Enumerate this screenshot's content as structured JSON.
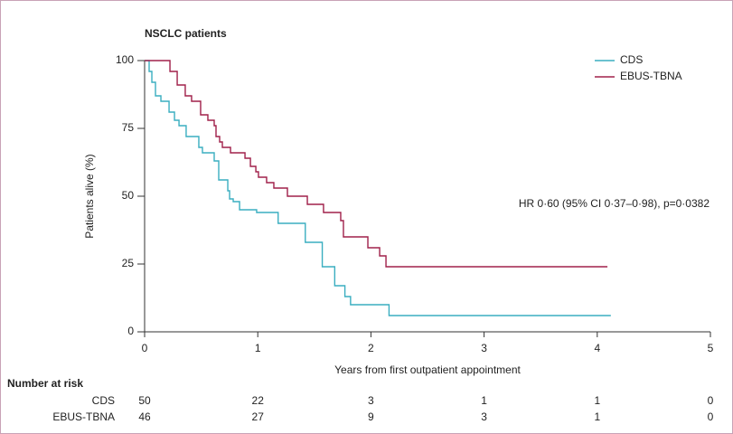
{
  "chart_data": {
    "type": "step-line",
    "title": "NSCLC patients",
    "x_label": "Years from first outpatient appointment",
    "y_label": "Patients alive (%)",
    "annotation": "HR 0·60 (95% CI 0·37–0·98), p=0·0382",
    "xlim": [
      0,
      5
    ],
    "xticks": [
      0,
      1,
      2,
      3,
      4,
      5
    ],
    "ylim": [
      0,
      100
    ],
    "yticks": [
      0,
      25,
      50,
      75,
      100
    ],
    "legend": "top-right",
    "series": [
      {
        "name": "CDS",
        "color": "#3aaec0",
        "x": [
          0,
          0.04,
          0.064,
          0.096,
          0.144,
          0.216,
          0.264,
          0.304,
          0.367,
          0.479,
          0.511,
          0.615,
          0.655,
          0.735,
          0.751,
          0.783,
          0.839,
          0.99,
          1.18,
          1.42,
          1.57,
          1.68,
          1.77,
          1.82,
          2.16,
          4.12
        ],
        "values": [
          100,
          96,
          92,
          87,
          85,
          81,
          78,
          76,
          72,
          68,
          66,
          63,
          56,
          52,
          49,
          48,
          45,
          44,
          40,
          33,
          24,
          17,
          13,
          10,
          6,
          6
        ]
      },
      {
        "name": "EBUS-TBNA",
        "color": "#a0204a",
        "x": [
          0,
          0.224,
          0.288,
          0.359,
          0.415,
          0.495,
          0.559,
          0.615,
          0.631,
          0.663,
          0.687,
          0.759,
          0.887,
          0.935,
          0.983,
          1.006,
          1.078,
          1.142,
          1.262,
          1.438,
          1.581,
          1.733,
          1.757,
          1.973,
          2.077,
          2.133,
          4.09
        ],
        "values": [
          100,
          96,
          91,
          87,
          85,
          80,
          78,
          76,
          72,
          70,
          68,
          66,
          64,
          61,
          59,
          57,
          55,
          53,
          50,
          47,
          44,
          41,
          35,
          31,
          28,
          24,
          24
        ]
      }
    ],
    "risk_table": {
      "title": "Number at risk",
      "rows": [
        {
          "name": "CDS",
          "values": [
            50,
            22,
            3,
            1,
            1,
            0
          ]
        },
        {
          "name": "EBUS-TBNA",
          "values": [
            46,
            27,
            9,
            3,
            1,
            0
          ]
        }
      ]
    }
  }
}
